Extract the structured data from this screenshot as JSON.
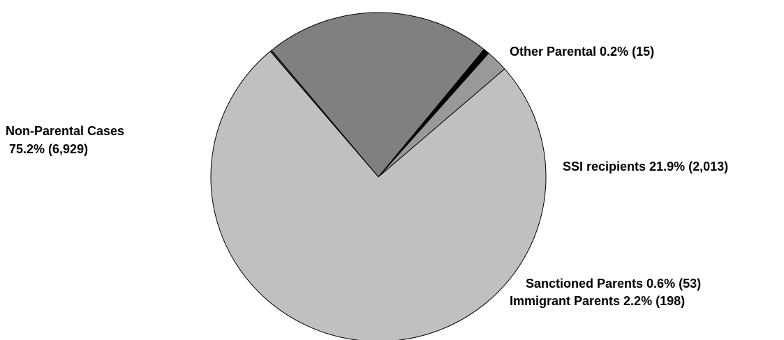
{
  "chart_data": {
    "type": "pie",
    "title": "",
    "slices": [
      {
        "label": "Other Parental 0.2% (15)",
        "percent": 0.2,
        "count": 15,
        "color": "#333333"
      },
      {
        "label": "SSI recipients 21.9% (2,013)",
        "percent": 21.9,
        "count": 2013,
        "color": "#808080"
      },
      {
        "label": "Sanctioned Parents 0.6% (53)",
        "percent": 0.6,
        "count": 53,
        "color": "#000000"
      },
      {
        "label": "Immigrant Parents 2.2% (198)",
        "percent": 2.2,
        "count": 198,
        "color": "#999999"
      },
      {
        "label": "Non-Parental Cases",
        "label_line2": " 75.2% (6,929)",
        "percent": 75.2,
        "count": 6929,
        "color": "#c0c0c0"
      }
    ]
  }
}
